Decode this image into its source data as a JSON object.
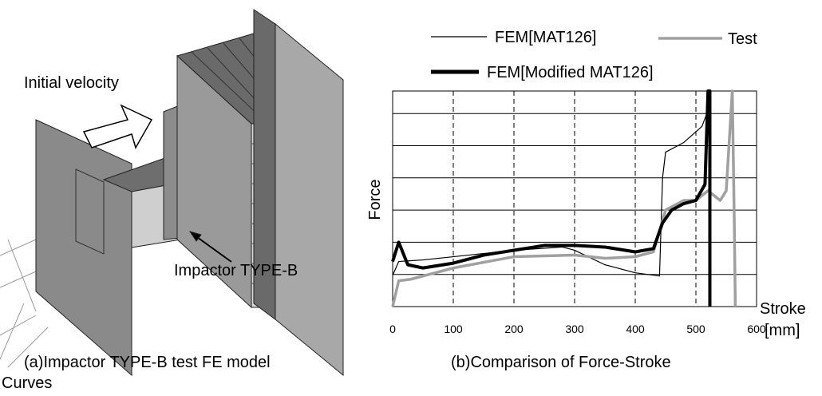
{
  "figure_a": {
    "velocity_label": "Initial velocity",
    "impactor_label": "Impactor TYPE-B",
    "caption": "(a)Impactor TYPE-B test FE model"
  },
  "figure_b_caption": "(b)Comparison of Force-Stroke",
  "caption_continuation": "Curves",
  "chart_data": {
    "type": "line",
    "xlabel": "Stroke",
    "xunit": "[mm]",
    "ylabel": "Force",
    "xlim": [
      0,
      600
    ],
    "xticks": [
      0,
      100,
      200,
      300,
      400,
      500,
      600
    ],
    "ylim": [
      0,
      6.7
    ],
    "ygrid": [
      1,
      2,
      3,
      4,
      5,
      6
    ],
    "series": [
      {
        "name": "FEM[MAT126]",
        "color": "#000000",
        "x": [
          0,
          10,
          50,
          100,
          200,
          280,
          300,
          350,
          400,
          440,
          445,
          450,
          480,
          510,
          518,
          520
        ],
        "values": [
          0.97,
          1.4,
          1.45,
          1.55,
          1.75,
          1.85,
          1.75,
          1.3,
          1.05,
          0.95,
          4.0,
          4.8,
          5.1,
          5.6,
          6.0,
          6.7
        ]
      },
      {
        "name": "Test",
        "color": "#a0a0a0",
        "x": [
          0,
          10,
          30,
          100,
          200,
          300,
          350,
          400,
          430,
          450,
          480,
          500,
          520,
          540,
          550,
          560,
          563,
          565
        ],
        "values": [
          0,
          0.8,
          0.85,
          1.2,
          1.55,
          1.6,
          1.5,
          1.55,
          1.7,
          3.0,
          3.3,
          3.3,
          3.6,
          3.3,
          3.6,
          6.7,
          3.0,
          0
        ]
      },
      {
        "name": "FEM[Modified MAT126]",
        "color": "#000000",
        "x": [
          0,
          10,
          25,
          50,
          100,
          150,
          200,
          250,
          300,
          350,
          400,
          430,
          445,
          460,
          480,
          500,
          515,
          520,
          523,
          523
        ],
        "values": [
          1.4,
          2.0,
          1.3,
          1.2,
          1.35,
          1.6,
          1.75,
          1.9,
          1.9,
          1.85,
          1.7,
          1.8,
          2.6,
          3.0,
          3.2,
          3.3,
          3.8,
          6.7,
          6.7,
          0
        ]
      }
    ]
  }
}
